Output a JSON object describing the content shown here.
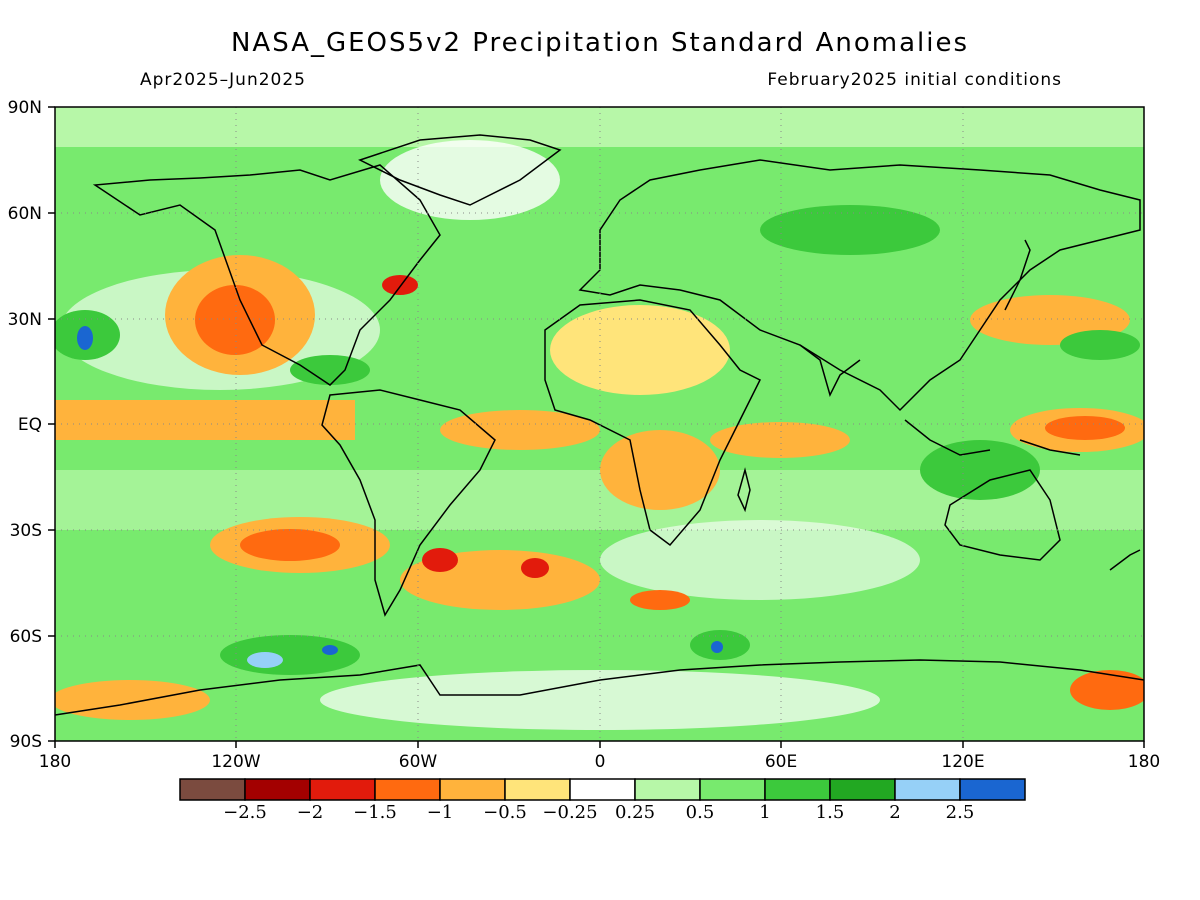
{
  "title": "NASA_GEOS5v2 Precipitation Standard Anomalies",
  "subtitle_left": "Apr2025–Jun2025",
  "subtitle_right": "February2025 initial conditions",
  "lat_labels": [
    "90N",
    "60N",
    "30N",
    "EQ",
    "30S",
    "60S",
    "90S"
  ],
  "lon_labels": [
    "180",
    "120W",
    "60W",
    "0",
    "60E",
    "120E",
    "180"
  ],
  "colorbar": {
    "colors": [
      "#7b4b3f",
      "#a30000",
      "#e21b0c",
      "#ff6a10",
      "#ffb33c",
      "#ffe47a",
      "#ffffff",
      "#b7f7a8",
      "#78ea6e",
      "#3cc93c",
      "#22a822",
      "#96d0f7",
      "#1a66d1"
    ],
    "labels": [
      "−2.5",
      "−2",
      "−1.5",
      "−1",
      "−0.5",
      "−0.25",
      "0.25",
      "0.5",
      "1",
      "1.5",
      "2",
      "2.5"
    ]
  }
}
